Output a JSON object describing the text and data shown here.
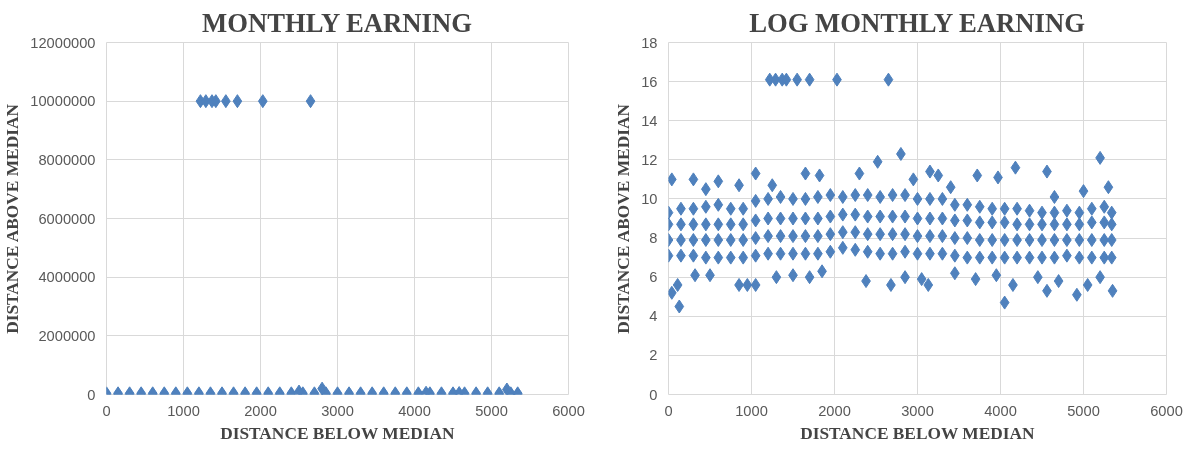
{
  "chart_data": [
    {
      "type": "scatter",
      "title": "MONTHLY EARNING",
      "xlabel": "DISTANCE BELOW MEDIAN",
      "ylabel": "DISTANCE ABOVE MEDIAN",
      "xlim": [
        0,
        6000
      ],
      "xticks": [
        0,
        1000,
        2000,
        3000,
        4000,
        5000,
        6000
      ],
      "ylim": [
        0,
        12000000
      ],
      "yticks": [
        0,
        2000000,
        4000000,
        6000000,
        8000000,
        10000000,
        12000000
      ],
      "grid": true,
      "marker": "diamond",
      "series": [
        {
          "color": "#4f81bd",
          "x": [
            0,
            150,
            300,
            450,
            600,
            750,
            900,
            1050,
            1200,
            1350,
            1500,
            1650,
            1800,
            1950,
            2100,
            2250,
            2400,
            2550,
            2700,
            2850,
            3000,
            3150,
            3300,
            3450,
            3600,
            3750,
            3900,
            4050,
            4200,
            4350,
            4500,
            4650,
            4800,
            4950,
            5100,
            5250,
            5340
          ],
          "values": [
            0,
            0,
            0,
            0,
            0,
            0,
            0,
            0,
            0,
            0,
            0,
            0,
            0,
            0,
            0,
            0,
            0,
            0,
            0,
            0,
            0,
            0,
            0,
            0,
            0,
            0,
            0,
            0,
            0,
            0,
            0,
            0,
            0,
            0,
            0,
            0,
            0
          ]
        },
        {
          "color": "#4f81bd",
          "x": [
            0,
            150,
            300,
            450,
            600,
            750,
            900,
            1050,
            1200,
            1350,
            1500,
            1650,
            1800,
            1950,
            2100,
            2250,
            2400,
            2550,
            2700,
            2850,
            3000,
            3150,
            3300,
            3450,
            3600,
            3750,
            3900,
            4050,
            4200,
            4350,
            4500,
            4650,
            4800,
            4950,
            5100,
            5250,
            5340
          ],
          "values": [
            40000,
            40000,
            40000,
            40000,
            40000,
            40000,
            40000,
            40000,
            40000,
            40000,
            40000,
            40000,
            40000,
            40000,
            40000,
            40000,
            40000,
            40000,
            40000,
            40000,
            40000,
            40000,
            40000,
            40000,
            40000,
            40000,
            40000,
            40000,
            40000,
            40000,
            40000,
            40000,
            40000,
            40000,
            40000,
            40000,
            40000
          ]
        },
        {
          "color": "#4f81bd",
          "x": [
            2500,
            2800,
            4150,
            4580,
            5200
          ],
          "values": [
            100000,
            200000,
            60000,
            50000,
            170000
          ]
        },
        {
          "color": "#4f81bd",
          "x": [
            1220,
            1290,
            1370,
            1420,
            1550,
            1700,
            2030,
            2650
          ],
          "values": [
            10000000,
            10000000,
            10000000,
            10000000,
            10000000,
            10000000,
            10000000,
            10000000
          ]
        }
      ]
    },
    {
      "type": "scatter",
      "title": "LOG MONTHLY EARNING",
      "xlabel": "DISTANCE BELOW MEDIAN",
      "ylabel": "DISTANCE ABOVE MEDIAN",
      "xlim": [
        0,
        6000
      ],
      "xticks": [
        0,
        1000,
        2000,
        3000,
        4000,
        5000,
        6000
      ],
      "ylim": [
        0,
        18
      ],
      "yticks": [
        0,
        2,
        4,
        6,
        8,
        10,
        12,
        14,
        16,
        18
      ],
      "grid": true,
      "marker": "diamond",
      "series": [
        {
          "color": "#4f81bd",
          "x": [
            0,
            150,
            300,
            450,
            600,
            750,
            900,
            1050,
            1200,
            1350,
            1500,
            1650,
            1800,
            1950,
            2100,
            2250,
            2400,
            2550,
            2700,
            2850,
            3000,
            3150,
            3300,
            3450,
            3600,
            3750,
            3900,
            4050,
            4200,
            4350,
            4500,
            4650,
            4800,
            4950,
            5100,
            5250,
            5340
          ],
          "values": [
            7.1,
            7.1,
            7.1,
            7.0,
            7.0,
            7.0,
            7.0,
            7.1,
            7.2,
            7.2,
            7.2,
            7.2,
            7.2,
            7.3,
            7.5,
            7.4,
            7.3,
            7.2,
            7.2,
            7.3,
            7.2,
            7.2,
            7.2,
            7.1,
            7.0,
            7.0,
            7.0,
            7.0,
            7.0,
            7.0,
            7.0,
            7.0,
            7.1,
            7.0,
            7.0,
            7.0,
            7.0
          ]
        },
        {
          "color": "#4f81bd",
          "x": [
            0,
            150,
            300,
            450,
            600,
            750,
            900,
            1050,
            1200,
            1350,
            1500,
            1650,
            1800,
            1950,
            2100,
            2250,
            2400,
            2550,
            2700,
            2850,
            3000,
            3150,
            3300,
            3450,
            3600,
            3750,
            3900,
            4050,
            4200,
            4350,
            4500,
            4650,
            4800,
            4950,
            5100,
            5250,
            5340
          ],
          "values": [
            7.9,
            7.9,
            7.9,
            7.9,
            7.9,
            7.9,
            7.9,
            8.0,
            8.1,
            8.1,
            8.1,
            8.1,
            8.1,
            8.2,
            8.3,
            8.3,
            8.2,
            8.2,
            8.2,
            8.2,
            8.1,
            8.1,
            8.1,
            8.0,
            8.0,
            7.9,
            7.9,
            7.9,
            7.9,
            7.9,
            7.9,
            7.9,
            7.9,
            7.9,
            7.9,
            7.9,
            7.9
          ]
        },
        {
          "color": "#4f81bd",
          "x": [
            0,
            150,
            300,
            450,
            600,
            750,
            900,
            1050,
            1200,
            1350,
            1500,
            1650,
            1800,
            1950,
            2100,
            2250,
            2400,
            2550,
            2700,
            2850,
            3000,
            3150,
            3300,
            3450,
            3600,
            3750,
            3900,
            4050,
            4200,
            4350,
            4500,
            4650,
            4800,
            4950,
            5100,
            5250,
            5340
          ],
          "values": [
            8.7,
            8.7,
            8.7,
            8.7,
            8.7,
            8.7,
            8.7,
            8.9,
            9.0,
            9.0,
            9.0,
            9.0,
            9.0,
            9.1,
            9.2,
            9.2,
            9.1,
            9.1,
            9.1,
            9.1,
            9.0,
            9.0,
            9.0,
            8.9,
            8.9,
            8.8,
            8.8,
            8.8,
            8.7,
            8.7,
            8.7,
            8.7,
            8.7,
            8.7,
            8.8,
            8.8,
            8.7
          ]
        },
        {
          "color": "#4f81bd",
          "x": [
            0,
            150,
            300,
            450,
            600,
            750,
            900,
            1050,
            1200,
            1350,
            1500,
            1650,
            1800,
            1950,
            2100,
            2250,
            2400,
            2550,
            2700,
            2850,
            3000,
            3150,
            3300,
            3450,
            3600,
            3750,
            3900,
            4050,
            4200,
            4350,
            4500,
            4650,
            4800,
            4950,
            5100,
            5250,
            5340
          ],
          "values": [
            9.3,
            9.5,
            9.5,
            9.6,
            9.7,
            9.5,
            9.5,
            9.9,
            10.0,
            10.1,
            10.0,
            10.0,
            10.1,
            10.2,
            10.1,
            10.2,
            10.2,
            10.1,
            10.2,
            10.2,
            10.0,
            10.0,
            10.0,
            9.7,
            9.7,
            9.6,
            9.5,
            9.5,
            9.5,
            9.4,
            9.3,
            9.3,
            9.4,
            9.3,
            9.5,
            9.6,
            9.3
          ]
        },
        {
          "color": "#4f81bd",
          "x": [
            40,
            300,
            450,
            600,
            850,
            1050,
            1250,
            1650,
            1820,
            2300,
            2520,
            2800,
            2950,
            3150,
            3250,
            3400,
            3720,
            3970,
            4180,
            4560,
            4650,
            5000,
            5200,
            5300
          ],
          "values": [
            11.0,
            11.0,
            10.5,
            10.9,
            10.7,
            11.3,
            10.7,
            11.3,
            11.2,
            11.3,
            11.9,
            12.3,
            11.0,
            11.4,
            11.2,
            10.6,
            11.2,
            11.1,
            11.6,
            11.4,
            10.1,
            10.4,
            12.1,
            10.6
          ]
        },
        {
          "color": "#4f81bd",
          "x": [
            40,
            110,
            130,
            320,
            500,
            850,
            950,
            1050,
            1300,
            1500,
            1700,
            1850,
            2380,
            2680,
            2850,
            3050,
            3130,
            3450,
            3700,
            3950,
            4050,
            4150,
            4450,
            4560,
            4700,
            4920,
            5050,
            5200,
            5350
          ],
          "values": [
            5.2,
            5.6,
            4.5,
            6.1,
            6.1,
            5.6,
            5.6,
            5.6,
            6.0,
            6.1,
            6.0,
            6.3,
            5.8,
            5.6,
            6.0,
            5.9,
            5.6,
            6.2,
            5.9,
            6.1,
            4.7,
            5.6,
            6.0,
            5.3,
            5.8,
            5.1,
            5.6,
            6.0,
            5.3
          ]
        },
        {
          "color": "#4f81bd",
          "x": [
            1220,
            1290,
            1370,
            1420,
            1550,
            1700,
            2030,
            2650
          ],
          "values": [
            16.1,
            16.1,
            16.1,
            16.1,
            16.1,
            16.1,
            16.1,
            16.1
          ]
        }
      ]
    }
  ]
}
